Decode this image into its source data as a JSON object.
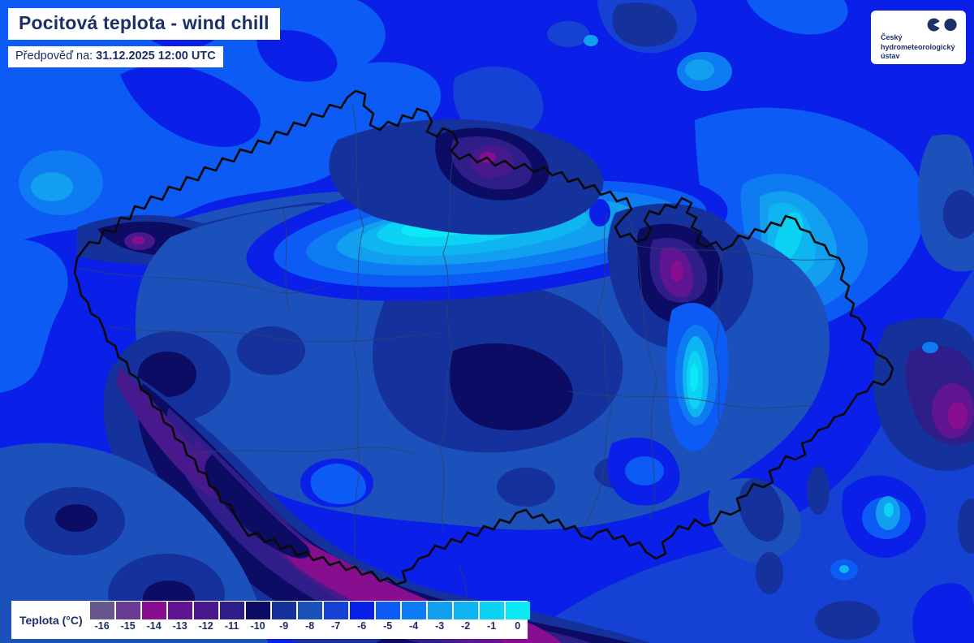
{
  "header": {
    "title": "Pocitová teplota - wind chill",
    "forecast_label": "Předpověď na:",
    "forecast_datetime": "31.12.2025 12:00 UTC"
  },
  "logo": {
    "line1": "Český",
    "line2": "hydrometeorologický",
    "line3": "ústav"
  },
  "map": {
    "region": "Czech Republic",
    "border_color": "#0a0a0a",
    "region_border_color": "#2f3f70"
  },
  "legend": {
    "label": "Teplota (°C)",
    "items": [
      {
        "label": "-16",
        "color": "#66588e"
      },
      {
        "label": "-15",
        "color": "#693a94"
      },
      {
        "label": "-14",
        "color": "#870e8e"
      },
      {
        "label": "-13",
        "color": "#5f1591"
      },
      {
        "label": "-12",
        "color": "#48198d"
      },
      {
        "label": "-11",
        "color": "#2f1e8a"
      },
      {
        "label": "-10",
        "color": "#0c0c64"
      },
      {
        "label": "-9",
        "color": "#14319c"
      },
      {
        "label": "-8",
        "color": "#1c50bb"
      },
      {
        "label": "-7",
        "color": "#1542d4"
      },
      {
        "label": "-6",
        "color": "#0a1fe8"
      },
      {
        "label": "-5",
        "color": "#0b5bf4"
      },
      {
        "label": "-4",
        "color": "#0f7bf2"
      },
      {
        "label": "-3",
        "color": "#129ff0"
      },
      {
        "label": "-2",
        "color": "#0fb5f0"
      },
      {
        "label": "-1",
        "color": "#0cd2f3"
      },
      {
        "label": "0",
        "color": "#0ae9f5"
      }
    ]
  }
}
